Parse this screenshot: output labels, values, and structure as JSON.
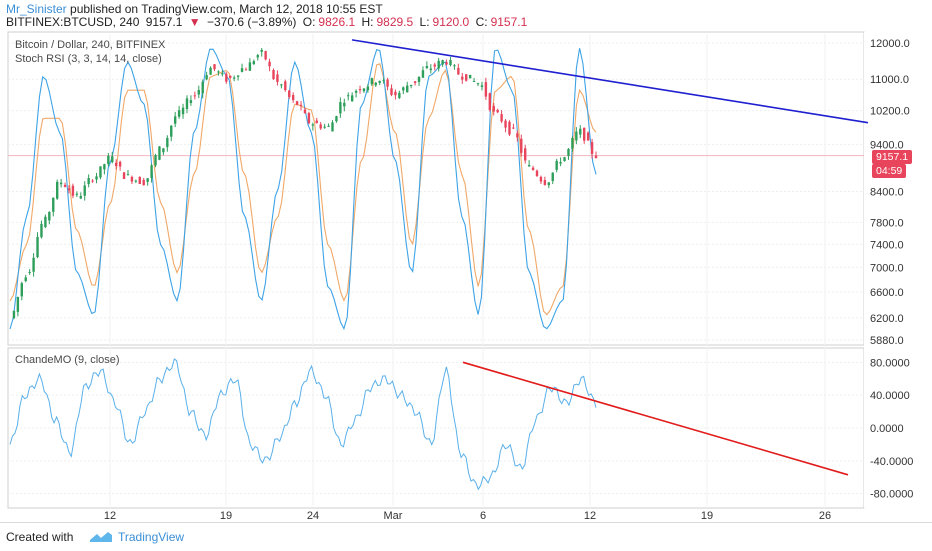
{
  "header": {
    "user": "Mr_Sinister",
    "published": "published on TradingView.com, March 12, 2018 10:55 EST",
    "symbol": "BITFINEX:BTCUSD, 240",
    "last": "9157.1",
    "change": "−370.6 (−3.89%)",
    "o_label": "O:",
    "o_value": "9826.1",
    "h_label": "H:",
    "h_value": "9829.5",
    "l_label": "L:",
    "l_value": "9120.0",
    "c_label": "C:",
    "c_value": "9157.1"
  },
  "main_pane": {
    "title": "Bitcoin / Dollar, 240, BITFINEX",
    "indicator": "Stoch RSI (3, 3, 14, 14, close)",
    "price_badge": "9157.1",
    "time_badge": "04:59"
  },
  "lower_pane": {
    "indicator": "ChandeMO (9, close)"
  },
  "footer": {
    "created": "Created with",
    "brand": "TradingView"
  },
  "colors": {
    "up": "#2e9e5b",
    "down": "#e8455c",
    "stoch_k": "#3ea3e6",
    "stoch_d": "#f0a868",
    "trend_blue": "#1f1fd0",
    "trend_red": "#e21b1b",
    "cmo": "#5ab0ea"
  },
  "chart_data": [
    {
      "type": "candlestick",
      "title": "Bitcoin / Dollar, 240, BITFINEX",
      "x_ticks": [
        "12",
        "19",
        "24",
        "Mar",
        "6",
        "12",
        "19",
        "26"
      ],
      "y_ticks": [
        "12000.0",
        "11000.0",
        "10200.0",
        "9400.0",
        "8400.0",
        "7800.0",
        "7400.0",
        "7000.0",
        "6600.0",
        "6200.0",
        "5880.0"
      ],
      "ylim": [
        5880,
        12000
      ],
      "y_scale": "log",
      "close_series": [
        6200,
        6900,
        7800,
        8600,
        8300,
        8700,
        9100,
        8700,
        8600,
        9300,
        10100,
        10600,
        11300,
        11000,
        11300,
        11700,
        10900,
        10400,
        9900,
        9800,
        10500,
        10800,
        11000,
        10600,
        10900,
        11300,
        11500,
        11100,
        10900,
        10100,
        9700,
        8900,
        8600,
        9100,
        9700,
        9157
      ],
      "trendline": {
        "from": {
          "date": "Feb 26",
          "price": 12090
        },
        "to": {
          "date": "Mar 28",
          "price": 9910
        }
      }
    },
    {
      "type": "line",
      "title": "Stoch RSI (3, 3, 14, 14, close)",
      "series": [
        {
          "name": "K",
          "values": [
            0,
            40,
            90,
            70,
            20,
            5,
            60,
            95,
            80,
            30,
            10,
            70,
            100,
            90,
            40,
            10,
            50,
            95,
            70,
            15,
            0,
            80,
            100,
            60,
            20,
            90,
            95,
            40,
            5,
            100,
            85,
            20,
            0,
            10,
            100,
            55
          ]
        },
        {
          "name": "D",
          "values": [
            10,
            30,
            75,
            75,
            35,
            15,
            45,
            85,
            85,
            45,
            20,
            55,
            90,
            92,
            55,
            20,
            40,
            80,
            78,
            30,
            10,
            60,
            95,
            70,
            30,
            75,
            92,
            55,
            15,
            85,
            90,
            35,
            5,
            15,
            85,
            70
          ]
        }
      ]
    },
    {
      "type": "line",
      "title": "ChandeMO (9, close)",
      "y_ticks": [
        "80.0000",
        "40.0000",
        "0.0000",
        "-40.0000",
        "-80.0000"
      ],
      "ylim": [
        -95,
        95
      ],
      "series": [
        {
          "name": "",
          "values": [
            -20,
            40,
            60,
            10,
            -30,
            50,
            70,
            30,
            -20,
            20,
            60,
            80,
            20,
            -10,
            40,
            60,
            -20,
            -40,
            -10,
            30,
            70,
            40,
            -20,
            10,
            50,
            60,
            40,
            20,
            -20,
            70,
            -30,
            -70,
            -60,
            -20,
            -50,
            10,
            50,
            30,
            60,
            30
          ]
        }
      ],
      "trendline": {
        "from": {
          "date": "Mar 5",
          "cmo": 80
        },
        "to": {
          "date": "Mar 27",
          "cmo": -57
        }
      }
    }
  ]
}
